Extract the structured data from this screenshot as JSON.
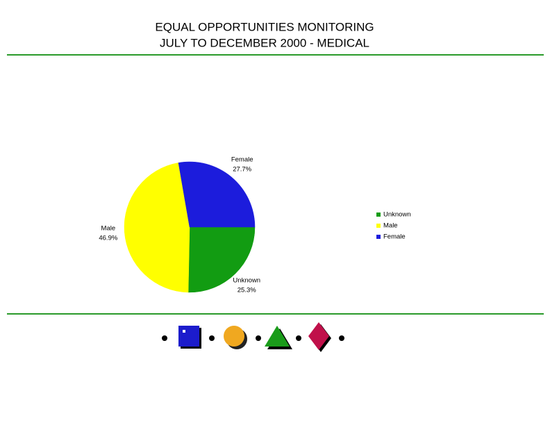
{
  "chart_data": {
    "type": "pie",
    "title": "EQUAL OPPORTUNITIES MONITORING",
    "subtitle": "JULY TO DECEMBER 2000 - MEDICAL",
    "categories": [
      "Unknown",
      "Male",
      "Female"
    ],
    "values": [
      25.3,
      46.9,
      27.7
    ],
    "value_labels": [
      "25.3%",
      "46.9%",
      "27.7%"
    ],
    "colors": [
      "#129c12",
      "#ffff00",
      "#1c1cdc"
    ],
    "legend": "right"
  }
}
